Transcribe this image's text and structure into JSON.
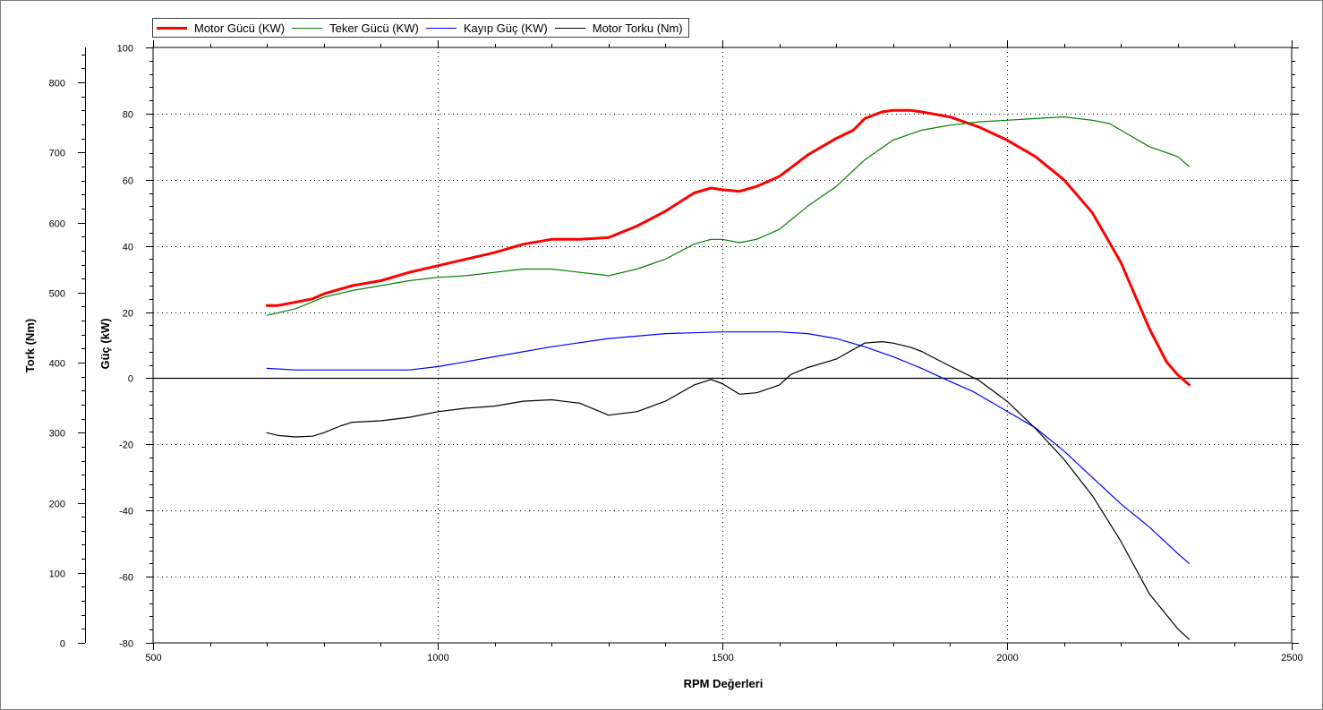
{
  "chart_data": {
    "type": "line",
    "xlabel": "RPM Değerleri",
    "y_left_outer_label": "Tork (Nm)",
    "y_left_inner_label": "Güç (kW)",
    "xlim": [
      500,
      2500
    ],
    "x_ticks": [
      "500",
      "1000",
      "1500",
      "2000",
      "2500"
    ],
    "y_power_lim": [
      -80,
      100
    ],
    "y_power_ticks": [
      "100",
      "80",
      "60",
      "40",
      "20",
      "0",
      "-20",
      "-40",
      "-60",
      "-80"
    ],
    "y_torque_lim": [
      0,
      850
    ],
    "y_torque_ticks": [
      "800",
      "700",
      "600",
      "500",
      "400",
      "300",
      "200",
      "100",
      "0"
    ],
    "grid": true,
    "legend_position": "top-left",
    "series": [
      {
        "name": "Motor Gücü (KW)",
        "color": "#ff0000",
        "axis": "power",
        "x": [
          700,
          720,
          750,
          780,
          800,
          850,
          900,
          950,
          1000,
          1050,
          1100,
          1150,
          1200,
          1250,
          1300,
          1350,
          1400,
          1450,
          1480,
          1500,
          1530,
          1560,
          1600,
          1650,
          1700,
          1730,
          1750,
          1780,
          1800,
          1830,
          1850,
          1900,
          1950,
          2000,
          2050,
          2100,
          2150,
          2200,
          2250,
          2280,
          2300,
          2320
        ],
        "values": [
          22,
          22,
          23,
          24,
          25.5,
          28,
          29.5,
          32,
          34,
          36,
          38,
          40.5,
          42,
          42,
          42.5,
          46,
          50.5,
          56,
          57.5,
          57,
          56.5,
          58,
          61,
          67.5,
          72.5,
          75,
          78.5,
          80.5,
          81,
          81,
          80.5,
          79,
          76,
          72,
          67,
          60,
          50,
          35,
          15,
          5,
          1,
          -2
        ]
      },
      {
        "name": "Teker Gücü (KW)",
        "color": "#008000",
        "axis": "power",
        "x": [
          700,
          750,
          800,
          850,
          900,
          950,
          1000,
          1050,
          1100,
          1150,
          1200,
          1250,
          1300,
          1350,
          1400,
          1450,
          1480,
          1500,
          1530,
          1560,
          1600,
          1650,
          1700,
          1750,
          1800,
          1850,
          1900,
          1950,
          2000,
          2050,
          2100,
          2150,
          2180,
          2200,
          2250,
          2300,
          2320
        ],
        "values": [
          19,
          21,
          24.5,
          26.5,
          28,
          29.5,
          30.5,
          31,
          32,
          33,
          33,
          32,
          31,
          33,
          36,
          40.5,
          42,
          42,
          41,
          42,
          45,
          52,
          58,
          66,
          72,
          75,
          76.5,
          77.5,
          78,
          78.5,
          79,
          78,
          77,
          75,
          70,
          67,
          64
        ]
      },
      {
        "name": "Kayıp Güç (KW)",
        "color": "#0000ff",
        "axis": "power",
        "x": [
          700,
          750,
          800,
          850,
          900,
          950,
          1000,
          1100,
          1200,
          1300,
          1400,
          1500,
          1550,
          1600,
          1650,
          1700,
          1750,
          1800,
          1850,
          1900,
          1940,
          1950,
          2000,
          2050,
          2100,
          2150,
          2200,
          2250,
          2300,
          2320
        ],
        "values": [
          3,
          2.5,
          2.5,
          2.5,
          2.5,
          2.5,
          3.5,
          6.5,
          9.5,
          12,
          13.5,
          14,
          14,
          14,
          13.5,
          12,
          9.5,
          6.5,
          3,
          -1,
          -4,
          -5,
          -10,
          -15,
          -22,
          -30,
          -38,
          -45,
          -53,
          -56
        ]
      },
      {
        "name": "Motor Torku (Nm)",
        "color": "#000000",
        "axis": "torque",
        "x": [
          700,
          720,
          750,
          780,
          800,
          830,
          850,
          900,
          950,
          1000,
          1050,
          1100,
          1150,
          1200,
          1250,
          1300,
          1350,
          1400,
          1450,
          1480,
          1500,
          1530,
          1560,
          1600,
          1620,
          1650,
          1700,
          1750,
          1780,
          1800,
          1830,
          1850,
          1900,
          1950,
          2000,
          2050,
          2100,
          2150,
          2200,
          2250,
          2280,
          2300,
          2320
        ],
        "values": [
          300,
          296,
          294,
          295,
          300,
          310,
          315,
          317,
          322,
          330,
          335,
          338,
          345,
          347,
          342,
          325,
          330,
          345,
          368,
          376,
          370,
          355,
          357,
          368,
          383,
          393,
          405,
          428,
          430,
          428,
          422,
          416,
          395,
          375,
          345,
          306,
          262,
          210,
          145,
          70,
          40,
          20,
          5
        ]
      }
    ]
  }
}
